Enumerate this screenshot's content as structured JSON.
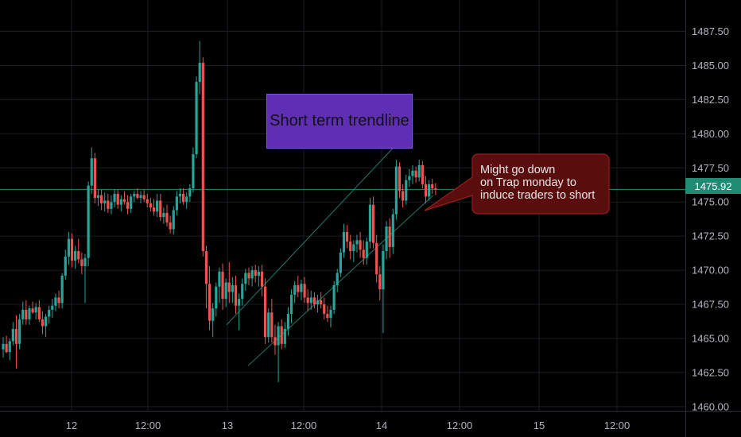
{
  "chart_data": {
    "type": "candlestick",
    "y_axis": {
      "ticks": [
        "1487.50",
        "1485.00",
        "1482.50",
        "1480.00",
        "1477.50",
        "1475.00",
        "1472.50",
        "1470.00",
        "1467.50",
        "1465.00",
        "1462.50",
        "1460.00"
      ],
      "ylim": [
        1459.7,
        1489.8
      ]
    },
    "x_axis": {
      "ticks": [
        "12",
        "12:00",
        "13",
        "12:00",
        "14",
        "12:00",
        "15",
        "12:00"
      ]
    },
    "current_price": "1475.92",
    "candles": [
      [
        1464.2,
        1465.1,
        1463.6,
        1464.6
      ],
      [
        1464.6,
        1465.2,
        1463.9,
        1464.0
      ],
      [
        1464.0,
        1465.0,
        1463.4,
        1464.8
      ],
      [
        1464.8,
        1466.2,
        1464.5,
        1465.7
      ],
      [
        1465.7,
        1466.7,
        1462.8,
        1464.6
      ],
      [
        1464.6,
        1466.8,
        1464.2,
        1466.4
      ],
      [
        1466.4,
        1467.7,
        1466.0,
        1467.1
      ],
      [
        1467.1,
        1467.8,
        1466.0,
        1466.4
      ],
      [
        1466.4,
        1467.4,
        1466.0,
        1467.2
      ],
      [
        1467.2,
        1467.7,
        1466.8,
        1466.9
      ],
      [
        1466.9,
        1467.6,
        1466.4,
        1467.3
      ],
      [
        1467.3,
        1467.8,
        1466.2,
        1466.4
      ],
      [
        1466.4,
        1467.0,
        1465.3,
        1465.9
      ],
      [
        1465.9,
        1466.8,
        1465.1,
        1466.6
      ],
      [
        1466.6,
        1467.4,
        1466.1,
        1467.1
      ],
      [
        1467.1,
        1467.9,
        1466.5,
        1467.4
      ],
      [
        1467.4,
        1468.3,
        1467.0,
        1468.0
      ],
      [
        1468.0,
        1468.5,
        1467.2,
        1467.6
      ],
      [
        1467.6,
        1469.8,
        1467.2,
        1469.6
      ],
      [
        1469.6,
        1471.5,
        1469.3,
        1471.0
      ],
      [
        1471.0,
        1472.8,
        1470.4,
        1472.3
      ],
      [
        1472.3,
        1472.7,
        1470.2,
        1470.7
      ],
      [
        1470.7,
        1471.8,
        1470.1,
        1471.4
      ],
      [
        1471.4,
        1472.3,
        1470.5,
        1470.8
      ],
      [
        1470.8,
        1471.3,
        1469.7,
        1470.3
      ],
      [
        1470.3,
        1471.2,
        1467.6,
        1470.9
      ],
      [
        1470.9,
        1476.5,
        1470.3,
        1476.2
      ],
      [
        1476.2,
        1479.0,
        1475.6,
        1478.2
      ],
      [
        1478.2,
        1478.6,
        1474.9,
        1475.3
      ],
      [
        1475.3,
        1475.9,
        1474.7,
        1475.5
      ],
      [
        1475.5,
        1475.9,
        1474.4,
        1474.9
      ],
      [
        1474.9,
        1475.7,
        1474.3,
        1475.1
      ],
      [
        1475.1,
        1475.6,
        1474.2,
        1474.5
      ],
      [
        1474.5,
        1475.5,
        1474.1,
        1475.0
      ],
      [
        1475.0,
        1475.9,
        1474.6,
        1475.6
      ],
      [
        1475.6,
        1475.9,
        1474.5,
        1474.8
      ],
      [
        1474.8,
        1475.5,
        1474.3,
        1475.2
      ],
      [
        1475.2,
        1475.8,
        1474.8,
        1475.0
      ],
      [
        1475.0,
        1475.5,
        1474.1,
        1474.5
      ],
      [
        1474.5,
        1475.6,
        1474.2,
        1475.4
      ],
      [
        1475.4,
        1475.8,
        1475.0,
        1475.6
      ],
      [
        1475.6,
        1476.0,
        1475.2,
        1475.3
      ],
      [
        1475.3,
        1475.8,
        1474.9,
        1475.5
      ],
      [
        1475.5,
        1475.9,
        1475.0,
        1475.2
      ],
      [
        1475.2,
        1475.6,
        1474.6,
        1474.9
      ],
      [
        1474.9,
        1475.3,
        1474.3,
        1474.6
      ],
      [
        1474.6,
        1475.2,
        1474.0,
        1474.3
      ],
      [
        1474.3,
        1475.6,
        1473.9,
        1475.1
      ],
      [
        1475.1,
        1475.6,
        1473.6,
        1473.9
      ],
      [
        1473.9,
        1474.6,
        1473.4,
        1474.2
      ],
      [
        1474.2,
        1474.8,
        1473.2,
        1473.5
      ],
      [
        1473.5,
        1474.0,
        1472.7,
        1473.0
      ],
      [
        1473.0,
        1474.7,
        1472.6,
        1474.4
      ],
      [
        1474.4,
        1475.8,
        1474.0,
        1475.4
      ],
      [
        1475.4,
        1476.0,
        1474.9,
        1475.6
      ],
      [
        1475.6,
        1476.0,
        1474.8,
        1475.0
      ],
      [
        1475.0,
        1475.7,
        1474.5,
        1475.4
      ],
      [
        1475.4,
        1476.3,
        1475.0,
        1476.0
      ],
      [
        1476.0,
        1479.0,
        1475.7,
        1478.5
      ],
      [
        1478.5,
        1484.2,
        1478.2,
        1483.8
      ],
      [
        1483.8,
        1486.8,
        1482.9,
        1485.2
      ],
      [
        1485.2,
        1485.6,
        1471.0,
        1471.4
      ],
      [
        1471.4,
        1471.8,
        1467.2,
        1469.0
      ],
      [
        1469.0,
        1470.3,
        1465.6,
        1466.3
      ],
      [
        1466.3,
        1467.6,
        1465.1,
        1467.2
      ],
      [
        1467.2,
        1469.1,
        1466.6,
        1468.8
      ],
      [
        1468.8,
        1470.2,
        1467.6,
        1469.9
      ],
      [
        1469.9,
        1470.5,
        1467.1,
        1467.9
      ],
      [
        1467.9,
        1469.4,
        1467.3,
        1469.1
      ],
      [
        1469.1,
        1470.6,
        1467.6,
        1468.4
      ],
      [
        1468.4,
        1469.5,
        1467.6,
        1468.9
      ],
      [
        1468.9,
        1469.6,
        1466.8,
        1467.4
      ],
      [
        1467.4,
        1468.3,
        1465.6,
        1467.9
      ],
      [
        1467.9,
        1469.4,
        1467.4,
        1469.0
      ],
      [
        1469.0,
        1470.1,
        1468.5,
        1469.8
      ],
      [
        1469.8,
        1470.2,
        1468.9,
        1469.4
      ],
      [
        1469.4,
        1470.3,
        1468.8,
        1470.0
      ],
      [
        1470.0,
        1470.4,
        1469.1,
        1469.6
      ],
      [
        1469.6,
        1470.3,
        1468.8,
        1469.9
      ],
      [
        1469.9,
        1470.4,
        1468.1,
        1468.8
      ],
      [
        1468.8,
        1469.4,
        1464.6,
        1465.1
      ],
      [
        1465.1,
        1467.2,
        1464.7,
        1466.9
      ],
      [
        1466.9,
        1467.9,
        1464.7,
        1465.1
      ],
      [
        1465.1,
        1466.0,
        1463.8,
        1464.5
      ],
      [
        1464.5,
        1466.2,
        1461.8,
        1465.9
      ],
      [
        1465.9,
        1466.4,
        1464.2,
        1464.6
      ],
      [
        1464.6,
        1466.2,
        1464.3,
        1465.7
      ],
      [
        1465.7,
        1467.3,
        1465.2,
        1466.8
      ],
      [
        1466.8,
        1468.6,
        1466.1,
        1468.2
      ],
      [
        1468.2,
        1469.2,
        1467.6,
        1468.9
      ],
      [
        1468.9,
        1469.6,
        1468.0,
        1468.4
      ],
      [
        1468.4,
        1469.3,
        1467.8,
        1469.0
      ],
      [
        1469.0,
        1469.5,
        1467.6,
        1468.0
      ],
      [
        1468.0,
        1468.6,
        1467.0,
        1467.6
      ],
      [
        1467.6,
        1468.5,
        1467.1,
        1468.0
      ],
      [
        1468.0,
        1468.4,
        1467.2,
        1467.5
      ],
      [
        1467.5,
        1468.2,
        1466.9,
        1467.8
      ],
      [
        1467.8,
        1468.4,
        1467.2,
        1467.5
      ],
      [
        1467.5,
        1468.0,
        1466.4,
        1466.8
      ],
      [
        1466.8,
        1467.4,
        1466.2,
        1466.5
      ],
      [
        1466.5,
        1467.4,
        1465.8,
        1467.1
      ],
      [
        1467.1,
        1469.2,
        1466.8,
        1468.9
      ],
      [
        1468.9,
        1470.1,
        1468.4,
        1469.8
      ],
      [
        1469.8,
        1471.6,
        1469.5,
        1471.3
      ],
      [
        1471.3,
        1473.4,
        1470.9,
        1472.8
      ],
      [
        1472.8,
        1473.3,
        1471.6,
        1472.1
      ],
      [
        1472.1,
        1472.6,
        1470.8,
        1471.4
      ],
      [
        1471.4,
        1472.2,
        1470.6,
        1471.9
      ],
      [
        1471.9,
        1472.6,
        1471.3,
        1472.2
      ],
      [
        1472.2,
        1472.8,
        1470.9,
        1471.5
      ],
      [
        1471.5,
        1472.2,
        1470.4,
        1470.9
      ],
      [
        1470.9,
        1472.4,
        1470.4,
        1472.1
      ],
      [
        1472.1,
        1475.3,
        1471.6,
        1474.8
      ],
      [
        1474.8,
        1475.4,
        1471.6,
        1472.0
      ],
      [
        1472.0,
        1472.6,
        1469.1,
        1469.7
      ],
      [
        1469.7,
        1470.3,
        1467.8,
        1468.6
      ],
      [
        1468.6,
        1471.9,
        1465.4,
        1471.4
      ],
      [
        1471.4,
        1473.6,
        1470.8,
        1473.2
      ],
      [
        1473.2,
        1473.8,
        1470.9,
        1471.7
      ],
      [
        1471.7,
        1474.5,
        1471.2,
        1474.1
      ],
      [
        1474.1,
        1478.1,
        1473.7,
        1477.6
      ],
      [
        1477.6,
        1477.9,
        1475.3,
        1475.8
      ],
      [
        1475.8,
        1476.3,
        1474.6,
        1475.1
      ],
      [
        1475.1,
        1477.0,
        1474.8,
        1476.6
      ],
      [
        1476.6,
        1477.4,
        1476.1,
        1476.9
      ],
      [
        1476.9,
        1477.7,
        1476.3,
        1477.3
      ],
      [
        1477.3,
        1477.6,
        1476.4,
        1476.8
      ],
      [
        1476.8,
        1478.1,
        1476.5,
        1477.7
      ],
      [
        1477.7,
        1478.0,
        1476.0,
        1476.3
      ],
      [
        1476.3,
        1476.9,
        1474.9,
        1475.4
      ],
      [
        1475.4,
        1476.6,
        1475.1,
        1476.3
      ],
      [
        1476.3,
        1476.7,
        1475.6,
        1476.0
      ],
      [
        1476.0,
        1476.4,
        1475.5,
        1475.9
      ]
    ],
    "trend_channel": {
      "lower": [
        [
          1463.0,
          1475.5
        ]
      ],
      "upper": [
        [
          1466.0,
          1478.8
        ]
      ]
    },
    "annotations": {
      "box_title": "Short term trendline",
      "callout": "Might go down\non Trap monday to\ninduce traders to short"
    },
    "colors": {
      "background": "#000000",
      "up": "#26a69a",
      "down": "#ef5350",
      "grid": "#1a1d24",
      "channel": "#1f7a6a",
      "callout_fill": "#5a0d0d",
      "callout_border": "#9b1c1c",
      "box_fill": "#5e2fb5",
      "price_label": "#1e8c72"
    }
  }
}
